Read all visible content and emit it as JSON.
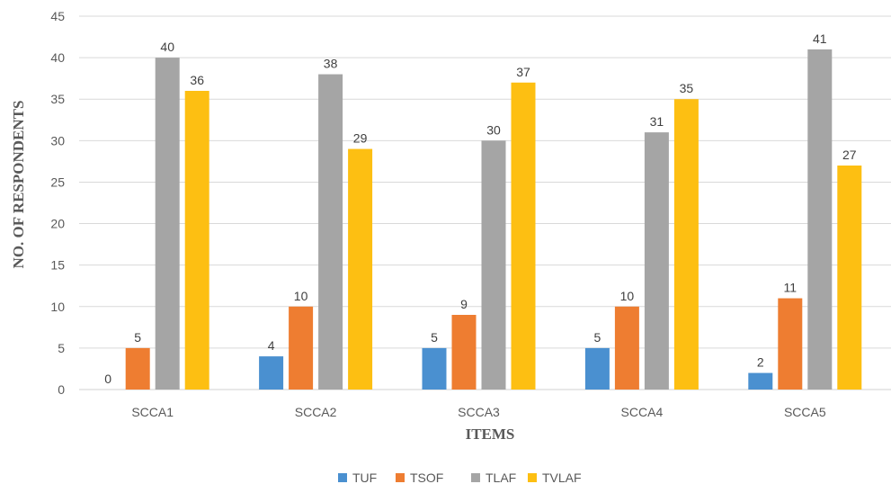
{
  "chart_data": {
    "type": "bar",
    "title": "",
    "xlabel": "ITEMS",
    "ylabel": "NO. OF RESPONDENTS",
    "categories": [
      "SCCA1",
      "SCCA2",
      "SCCA3",
      "SCCA4",
      "SCCA5"
    ],
    "ylim": [
      0,
      45
    ],
    "yticks": [
      0,
      5,
      10,
      15,
      20,
      25,
      30,
      35,
      40,
      45
    ],
    "grid": true,
    "legend_position": "bottom",
    "series": [
      {
        "name": "TUF",
        "color": "#4a90d0",
        "values": [
          0,
          4,
          5,
          5,
          2
        ]
      },
      {
        "name": "TSOF",
        "color": "#ee7d31",
        "values": [
          5,
          10,
          9,
          10,
          11
        ]
      },
      {
        "name": "TLAF",
        "color": "#a5a5a5",
        "values": [
          40,
          38,
          30,
          31,
          41
        ]
      },
      {
        "name": "TVLAF",
        "color": "#fdbf12",
        "values": [
          36,
          29,
          37,
          35,
          27
        ]
      }
    ]
  }
}
